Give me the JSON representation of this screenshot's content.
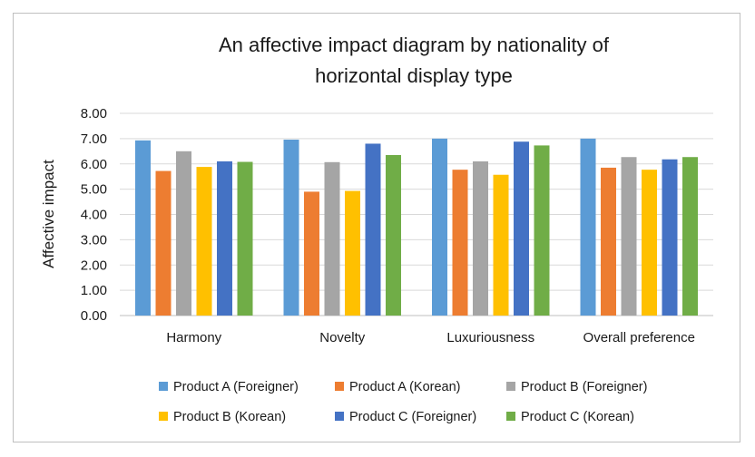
{
  "chart_data": {
    "type": "bar",
    "title_line1": "An affective impact diagram by nationality of",
    "title_line2": "horizontal display type",
    "ylabel": "Affective impact",
    "xlabel": "",
    "ylim": [
      0,
      8
    ],
    "yticks": [
      "0.00",
      "1.00",
      "2.00",
      "3.00",
      "4.00",
      "5.00",
      "6.00",
      "7.00",
      "8.00"
    ],
    "grid": true,
    "legend_position": "bottom",
    "categories": [
      "Harmony",
      "Novelty",
      "Luxuriousness",
      "Overall preference"
    ],
    "series": [
      {
        "name": "Product A (Foreigner)",
        "color": "#5b9bd5",
        "values": [
          6.93,
          6.96,
          7.0,
          7.0
        ]
      },
      {
        "name": "Product A (Korean)",
        "color": "#ed7d31",
        "values": [
          5.72,
          4.9,
          5.77,
          5.85
        ]
      },
      {
        "name": "Product B (Foreigner)",
        "color": "#a5a5a5",
        "values": [
          6.5,
          6.07,
          6.1,
          6.27
        ]
      },
      {
        "name": "Product B (Korean)",
        "color": "#ffc000",
        "values": [
          5.88,
          4.93,
          5.57,
          5.77
        ]
      },
      {
        "name": "Product C (Foreigner)",
        "color": "#4472c4",
        "values": [
          6.1,
          6.8,
          6.88,
          6.18
        ]
      },
      {
        "name": "Product C (Korean)",
        "color": "#70ad47",
        "values": [
          6.08,
          6.35,
          6.73,
          6.27
        ]
      }
    ]
  }
}
